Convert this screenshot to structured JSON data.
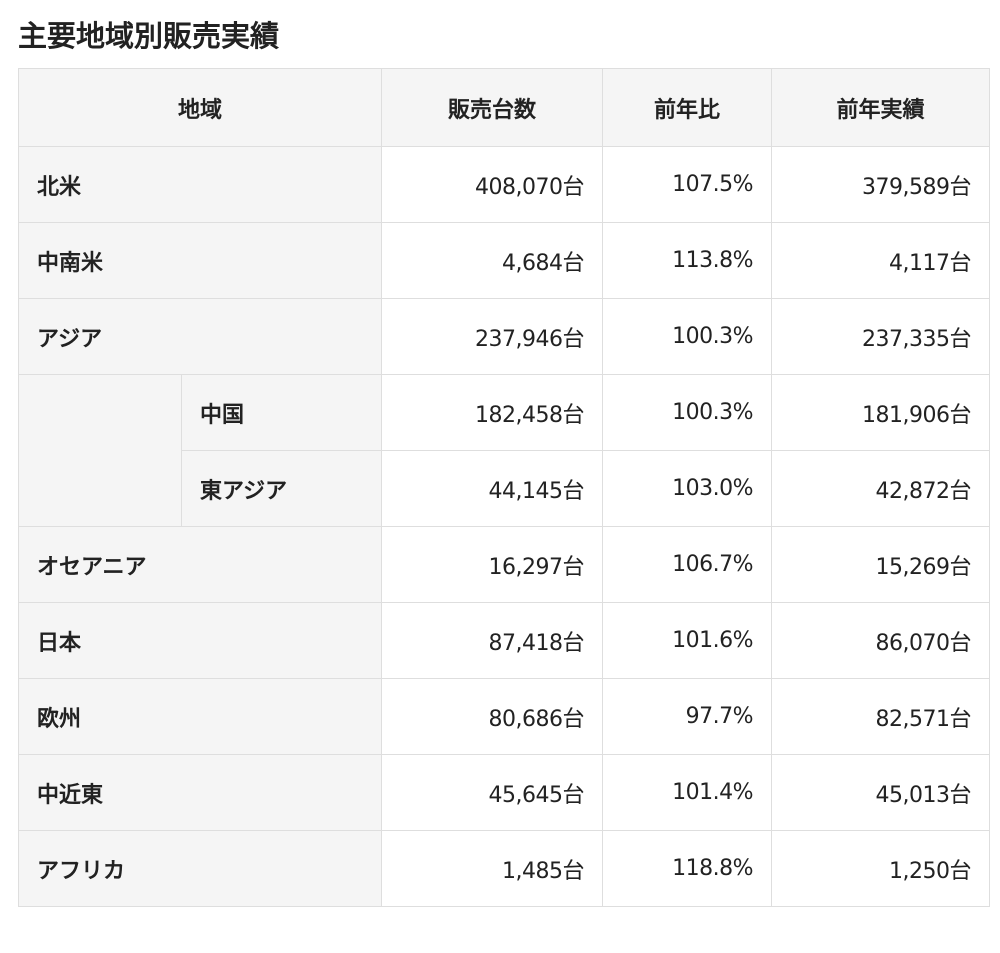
{
  "title": "主要地域別販売実績",
  "table": {
    "header": [
      "地域",
      "販売台数",
      "前年比",
      "前年実績"
    ],
    "rows": [
      {
        "region": "北米",
        "cells": [
          "408,070台",
          "107.5%",
          "379,589台"
        ]
      },
      {
        "region": "中南米",
        "cells": [
          "4,684台",
          "113.8%",
          "4,117台"
        ]
      },
      {
        "region": "アジア",
        "cells": [
          "237,946台",
          "100.3%",
          "237,335台"
        ],
        "children": [
          {
            "region": "中国",
            "cells": [
              "182,458台",
              "100.3%",
              "181,906台"
            ]
          },
          {
            "region": "東アジア",
            "cells": [
              "44,145台",
              "103.0%",
              "42,872台"
            ]
          }
        ]
      },
      {
        "region": "オセアニア",
        "cells": [
          "16,297台",
          "106.7%",
          "15,269台"
        ]
      },
      {
        "region": "日本",
        "cells": [
          "87,418台",
          "101.6%",
          "86,070台"
        ]
      },
      {
        "region": "欧州",
        "cells": [
          "80,686台",
          "97.7%",
          "82,571台"
        ]
      },
      {
        "region": "中近東",
        "cells": [
          "45,645台",
          "101.4%",
          "45,013台"
        ]
      },
      {
        "region": "アフリカ",
        "cells": [
          "1,485台",
          "118.8%",
          "1,250台"
        ]
      }
    ]
  }
}
